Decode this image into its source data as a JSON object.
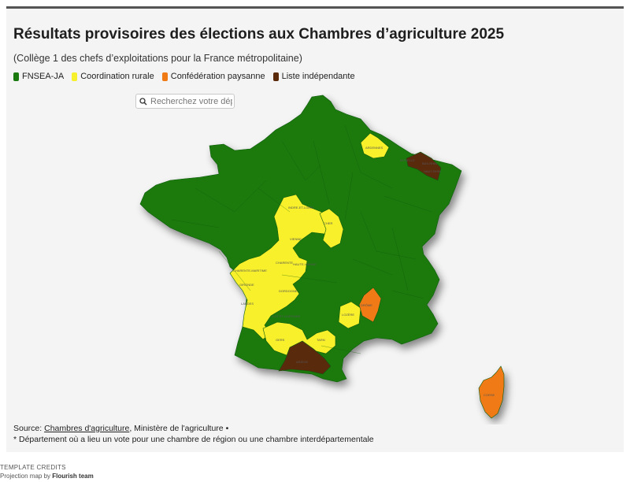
{
  "header": {
    "title": "Résultats provisoires des élections aux Chambres d’agriculture 2025",
    "subtitle": "(Collège 1 des chefs d’exploitations pour la France métropolitaine)"
  },
  "legend": [
    {
      "label": "FNSEA-JA",
      "color": "#1a7a10"
    },
    {
      "label": "Coordination rurale",
      "color": "#f7f02c"
    },
    {
      "label": "Confédération paysanne",
      "color": "#f07a14"
    },
    {
      "label": "Liste indépendante",
      "color": "#5a2a0a"
    }
  ],
  "search": {
    "placeholder": "Recherchez votre département"
  },
  "map": {
    "colors": {
      "fnsea": "#1a7a10",
      "cr": "#f7f02c",
      "conf": "#f07a14",
      "indep": "#5a2a0a",
      "border": "#0f5a0a"
    },
    "labels": [
      "ARDENNES",
      "INDRE-ET-LOIRE",
      "VIENNE",
      "CHER",
      "CHARENTE-MARITIME",
      "CHARENTE",
      "HAUTE-VIENNE",
      "DORDOGNE",
      "LOZÈRE",
      "DRÔME",
      "LANDES",
      "LOT-ET-GARONNE",
      "GERS",
      "TARN",
      "ARIÈGE",
      "HAUT-RHIN",
      "BAS-RHIN",
      "CORSE",
      "MOSELLE",
      "GIRONDE"
    ]
  },
  "footer": {
    "source_prefix": "Source: ",
    "source_link": "Chambres d'agriculture",
    "source_suffix": ", Ministère de l'agriculture •",
    "note": "* Département où a lieu un vote pour une chambre de région ou une chambre interdépartementale"
  },
  "credits": {
    "heading": "TEMPLATE CREDITS",
    "prefix": "Projection map by ",
    "author": "Flourish team"
  }
}
